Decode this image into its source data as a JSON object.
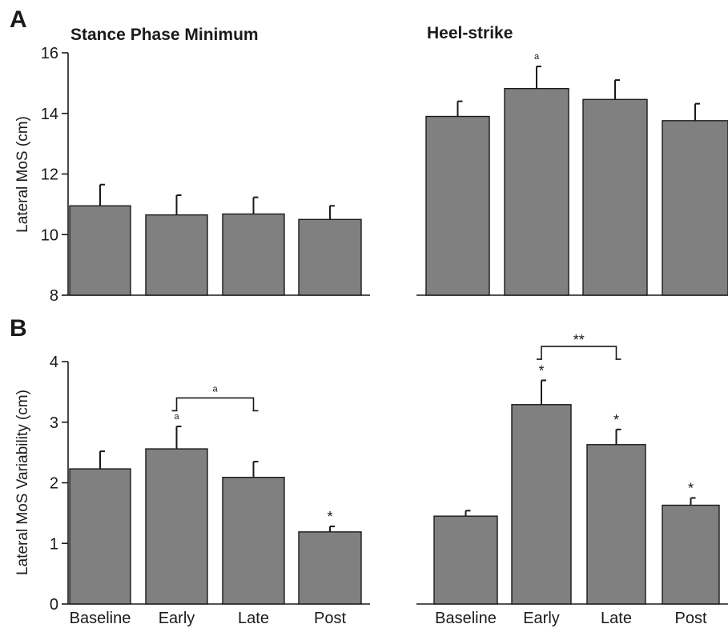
{
  "chart_data": [
    {
      "type": "bar",
      "panel_letter": "A",
      "title": "Stance Phase Minimum",
      "ylabel": "Lateral MoS (cm)",
      "ylim": [
        8,
        16
      ],
      "yticks": [
        "8",
        "10",
        "12",
        "14",
        "16"
      ],
      "categories": [
        "Baseline",
        "Early",
        "Late",
        "Post"
      ],
      "values": [
        10.95,
        10.65,
        10.68,
        10.5
      ],
      "errors": [
        0.7,
        0.65,
        0.55,
        0.45
      ],
      "annotations": [
        "",
        "",
        "",
        ""
      ],
      "bracket": null,
      "bar_color": "#808080"
    },
    {
      "type": "bar",
      "panel_letter": "",
      "title": "Heel-strike",
      "ylabel": "",
      "ylim": [
        8,
        16
      ],
      "yticks": [],
      "categories": [
        "Baseline",
        "Early",
        "Late",
        "Post"
      ],
      "values": [
        13.9,
        14.82,
        14.46,
        13.76
      ],
      "errors": [
        0.5,
        0.73,
        0.64,
        0.56
      ],
      "annotations": [
        "",
        "a",
        "",
        ""
      ],
      "bracket": null,
      "bar_color": "#808080"
    },
    {
      "type": "bar",
      "panel_letter": "B",
      "title": "",
      "ylabel": "Lateral MoS Variability (cm)",
      "ylim": [
        0,
        4
      ],
      "yticks": [
        "0",
        "1",
        "2",
        "3",
        "4"
      ],
      "categories": [
        "Baseline",
        "Early",
        "Late",
        "Post"
      ],
      "values": [
        2.23,
        2.56,
        2.09,
        1.19
      ],
      "errors": [
        0.29,
        0.37,
        0.26,
        0.09
      ],
      "annotations": [
        "",
        "a",
        "",
        "*"
      ],
      "bracket": {
        "from": 1,
        "to": 2,
        "label": "a",
        "level": 3.4
      },
      "bar_color": "#808080"
    },
    {
      "type": "bar",
      "panel_letter": "",
      "title": "",
      "ylabel": "",
      "ylim": [
        0,
        4
      ],
      "yticks": [],
      "categories": [
        "Baseline",
        "Early",
        "Late",
        "Post"
      ],
      "values": [
        1.45,
        3.29,
        2.63,
        1.63
      ],
      "errors": [
        0.09,
        0.4,
        0.25,
        0.12
      ],
      "annotations": [
        "",
        "*",
        "*",
        "*"
      ],
      "bracket": {
        "from": 1,
        "to": 2,
        "label": "**",
        "level": 4.25
      },
      "bar_color": "#808080"
    }
  ]
}
